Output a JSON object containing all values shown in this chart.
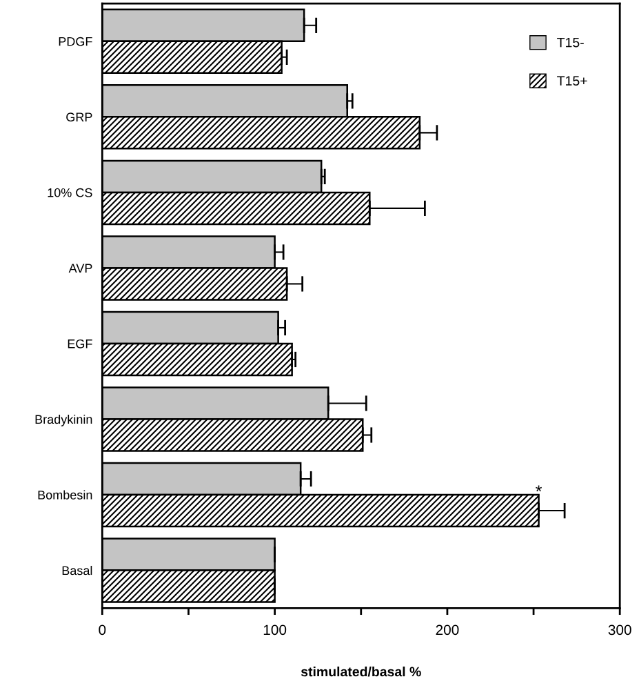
{
  "chart_data": {
    "type": "bar",
    "orientation": "horizontal",
    "xlabel": "stimulated/basal %",
    "categories": [
      "PDGF",
      "GRP",
      "10% CS",
      "AVP",
      "EGF",
      "Bradykinin",
      "Bombesin",
      "Basal"
    ],
    "series": [
      {
        "name": "T15-",
        "color": "#c4c4c4",
        "values": [
          117,
          142,
          127,
          100,
          102,
          131,
          115,
          100
        ],
        "errors": [
          7,
          3,
          2,
          5,
          4,
          22,
          6,
          null
        ]
      },
      {
        "name": "T15+",
        "color": "#000000",
        "values": [
          104,
          184,
          155,
          107,
          110,
          151,
          253,
          100
        ],
        "errors": [
          3,
          10,
          32,
          9,
          2,
          5,
          15,
          null
        ]
      }
    ],
    "xlim": [
      0,
      300
    ],
    "xticks": [
      0,
      {
        "value": 50,
        "label": null
      },
      100,
      {
        "value": 150,
        "label": null
      },
      200,
      {
        "value": 250,
        "label": null
      },
      300
    ],
    "annotations": [
      {
        "text": "*",
        "x": 253,
        "y": "Bombesin"
      }
    ],
    "legend": "top right",
    "grid": false
  }
}
